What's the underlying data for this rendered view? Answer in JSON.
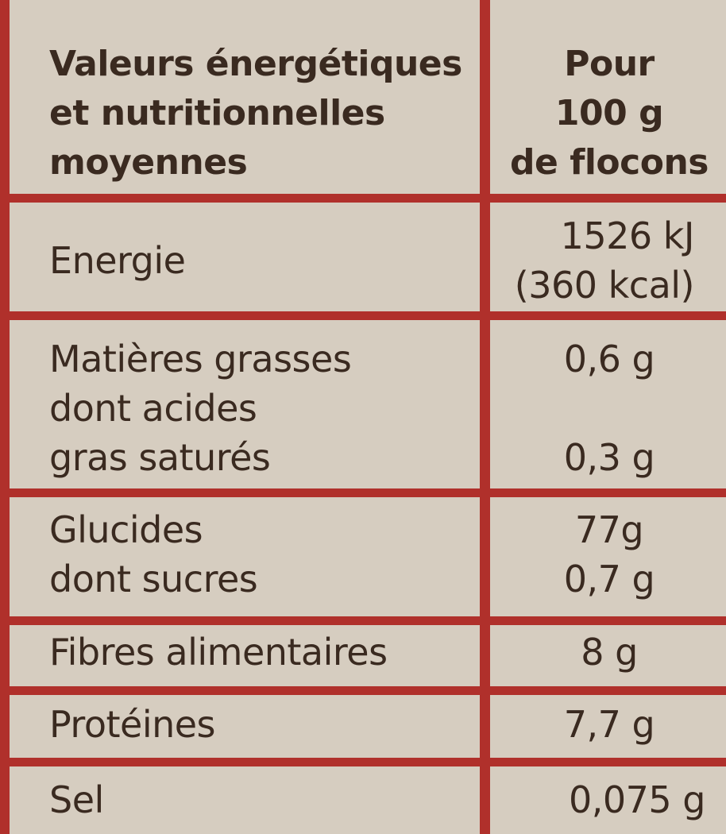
{
  "header": {
    "left_lines": [
      "Valeurs énergétiques",
      "et nutritionnelles",
      "moyennes"
    ],
    "right_lines": [
      "Pour",
      "100 g",
      "de flocons"
    ]
  },
  "rows": [
    {
      "label_lines": [
        "Energie"
      ],
      "value_lines": [
        "1526 kJ",
        "(360 kcal)"
      ]
    },
    {
      "label_lines": [
        "Matières grasses",
        "dont acides",
        "gras saturés"
      ],
      "value_lines": [
        "0,6 g",
        "",
        "0,3 g"
      ]
    },
    {
      "label_lines": [
        "Glucides",
        "dont sucres"
      ],
      "value_lines": [
        "77g",
        "0,7 g"
      ]
    },
    {
      "label_lines": [
        "Fibres alimentaires"
      ],
      "value_lines": [
        "8 g"
      ]
    },
    {
      "label_lines": [
        "Protéines"
      ],
      "value_lines": [
        "7,7 g"
      ]
    },
    {
      "label_lines": [
        "Sel"
      ],
      "value_lines": [
        "0,075 g"
      ]
    }
  ],
  "colors": {
    "border": "#b0302b",
    "background": "#d6cdc0",
    "text": "#3a2a20"
  }
}
